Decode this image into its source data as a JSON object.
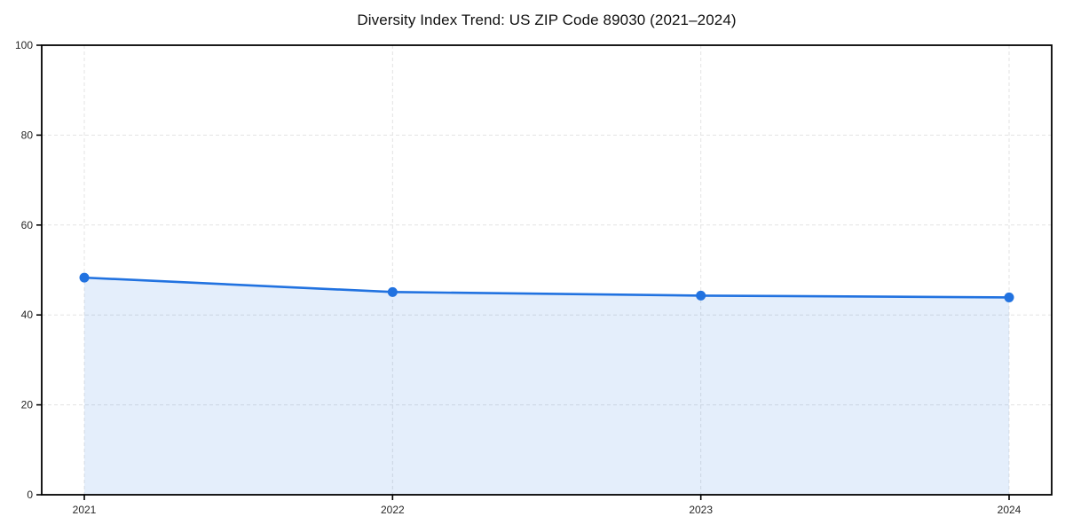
{
  "chart_data": {
    "type": "line",
    "title": "Diversity Index Trend: US ZIP Code 89030 (2021–2024)",
    "categories": [
      "2021",
      "2022",
      "2023",
      "2024"
    ],
    "values": [
      48.3,
      45.1,
      44.3,
      43.9
    ],
    "xlabel": "",
    "ylabel": "",
    "ylim": [
      0,
      100
    ],
    "yticks": [
      0,
      20,
      40,
      60,
      80,
      100
    ],
    "grid": "dashed-both-axes",
    "legend_position": "none",
    "area_fill": true,
    "marker": "circle",
    "colors": {
      "line": "#2172e0",
      "marker": "#2172e0",
      "area": "rgba(33,114,224,0.12)",
      "grid": "#e3e3e3",
      "axis": "#000000",
      "tick_label": "#262626",
      "title": "#111111"
    }
  }
}
